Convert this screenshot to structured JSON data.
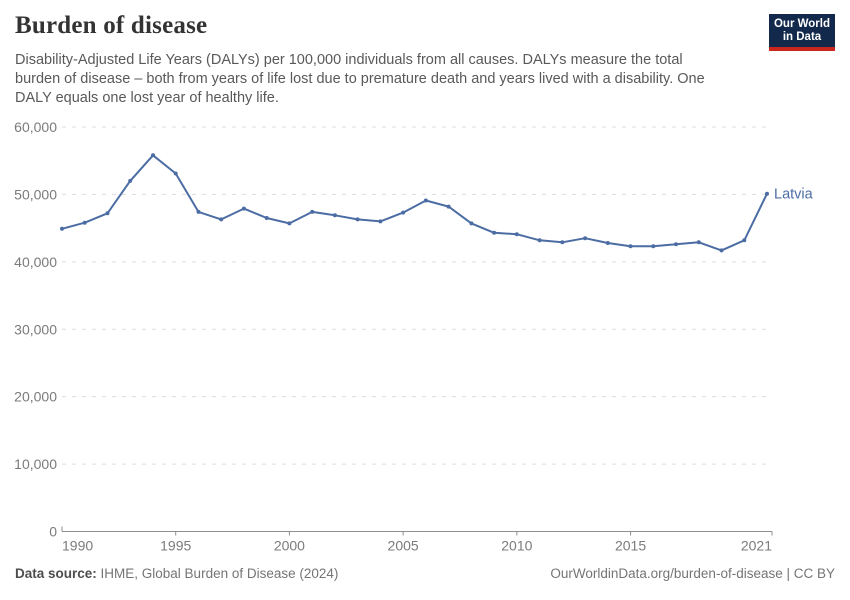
{
  "header": {
    "title": "Burden of disease",
    "subtitle_lines": [
      "Disability-Adjusted Life Years (DALYs) per 100,000 individuals from all causes. DALYs measure the total",
      "burden of disease – both from years of life lost due to premature death and years lived with a disability. One",
      "DALY equals one lost year of healthy life."
    ],
    "logo": {
      "line1": "Our World",
      "line2": "in Data",
      "bg_color": "#12294b",
      "accent_color": "#c9271e"
    }
  },
  "chart_data": {
    "type": "line",
    "title": "Burden of disease",
    "xlabel": "",
    "ylabel": "",
    "xlim": [
      1990,
      2021
    ],
    "ylim": [
      0,
      60000
    ],
    "grid": "horizontal-dashed",
    "legend_position": "end-of-line-label",
    "x_ticks": [
      1990,
      1995,
      2000,
      2005,
      2010,
      2015,
      2021
    ],
    "y_ticks": [
      0,
      10000,
      20000,
      30000,
      40000,
      50000,
      60000
    ],
    "y_tick_labels": [
      "0",
      "10,000",
      "20,000",
      "30,000",
      "40,000",
      "50,000",
      "60,000"
    ],
    "series": [
      {
        "name": "Latvia",
        "color": "#4c6da4",
        "x": [
          1990,
          1991,
          1992,
          1993,
          1994,
          1995,
          1996,
          1997,
          1998,
          1999,
          2000,
          2001,
          2002,
          2003,
          2004,
          2005,
          2006,
          2007,
          2008,
          2009,
          2010,
          2011,
          2012,
          2013,
          2014,
          2015,
          2016,
          2017,
          2018,
          2019,
          2020,
          2021
        ],
        "values": [
          44900,
          45800,
          47200,
          52000,
          55800,
          53100,
          47400,
          46300,
          47900,
          46500,
          45700,
          47400,
          46900,
          46300,
          46000,
          47300,
          49100,
          48200,
          45700,
          44300,
          44100,
          43200,
          42900,
          43500,
          42800,
          42300,
          42300,
          42600,
          42900,
          41700,
          43200,
          50100
        ]
      }
    ],
    "colors": {
      "grid": "#dcdcdc",
      "axis": "#8f8f8f",
      "tick_label": "#7b7b7b"
    }
  },
  "footer": {
    "source_label": "Data source:",
    "source_text": " IHME, Global Burden of Disease (2024)",
    "credit": "OurWorldinData.org/burden-of-disease | CC BY"
  }
}
